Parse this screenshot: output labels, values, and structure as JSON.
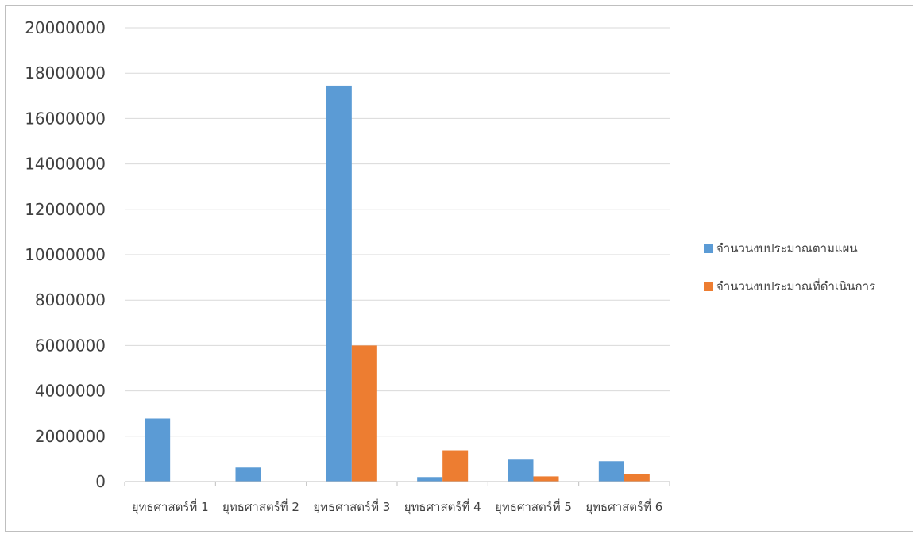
{
  "chart_data": {
    "type": "bar",
    "categories": [
      "ยุทธศาสตร์ที่ 1",
      "ยุทธศาสตร์ที่ 2",
      "ยุทธศาสตร์ที่ 3",
      "ยุทธศาสตร์ที่ 4",
      "ยุทธศาสตร์ที่ 5",
      "ยุทธศาสตร์ที่ 6"
    ],
    "series": [
      {
        "name": "จำนวนงบประมาณตามแผน",
        "color": "#5b9bd5",
        "values": [
          2780000,
          620000,
          17450000,
          200000,
          970000,
          900000
        ]
      },
      {
        "name": "จำนวนงบประมาณที่ดำเนินการ",
        "color": "#ed7d31",
        "values": [
          0,
          0,
          6000000,
          1380000,
          230000,
          330000
        ]
      }
    ],
    "ylim": [
      0,
      20000000
    ],
    "yticks": [
      0,
      2000000,
      4000000,
      6000000,
      8000000,
      10000000,
      12000000,
      14000000,
      16000000,
      18000000,
      20000000
    ],
    "ytick_labels": [
      "0",
      "2000000",
      "4000000",
      "6000000",
      "8000000",
      "10000000",
      "12000000",
      "14000000",
      "16000000",
      "18000000",
      "20000000"
    ],
    "grid": true,
    "legend_position": "right"
  }
}
